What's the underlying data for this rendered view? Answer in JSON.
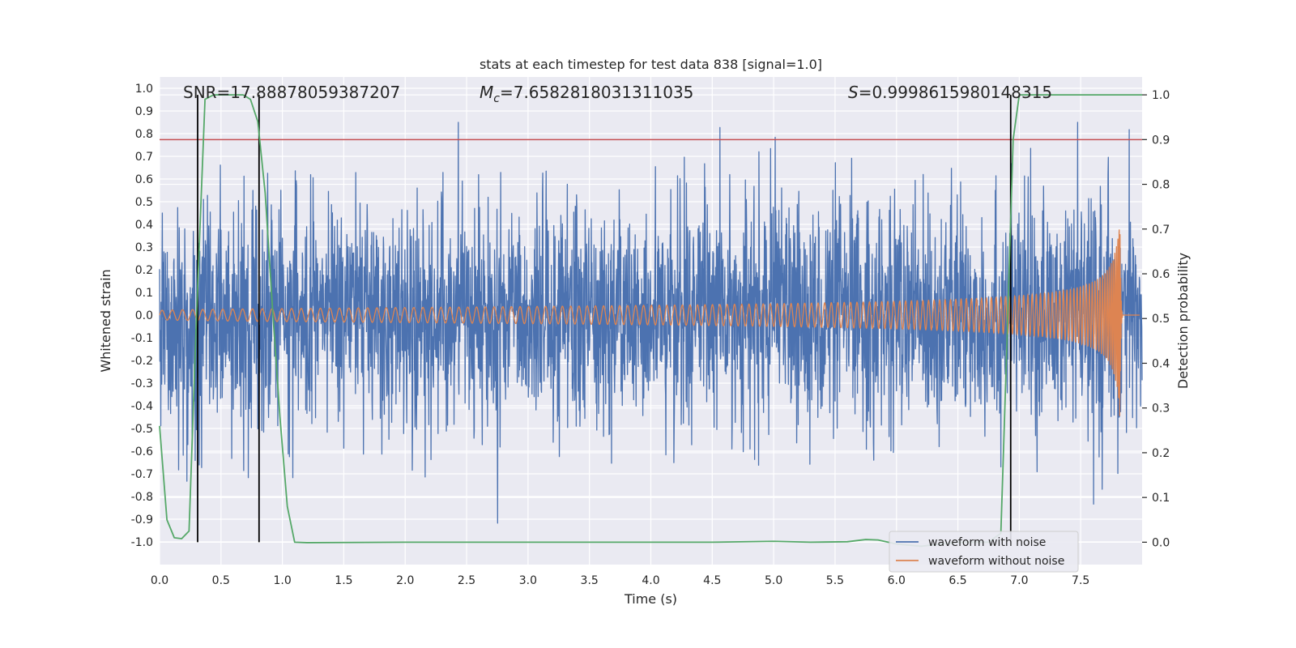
{
  "chart_data": {
    "type": "line",
    "title": "stats at each timestep for test data 838 [signal=1.0]",
    "xlabel": "Time (s)",
    "ylabel": "Whitened strain",
    "y2label": "Detection probability",
    "xlim": [
      0.0,
      8.0
    ],
    "ylim": [
      -1.1,
      1.05
    ],
    "y2lim": [
      -0.05,
      1.04
    ],
    "xticks": [
      "0.0",
      "0.5",
      "1.0",
      "1.5",
      "2.0",
      "2.5",
      "3.0",
      "3.5",
      "4.0",
      "4.5",
      "5.0",
      "5.5",
      "6.0",
      "6.5",
      "7.0",
      "7.5"
    ],
    "yticks": [
      "1.0",
      "0.9",
      "0.8",
      "0.7",
      "0.6",
      "0.5",
      "0.4",
      "0.3",
      "0.2",
      "0.1",
      "0.0",
      "-0.1",
      "-0.2",
      "-0.3",
      "-0.4",
      "-0.5",
      "-0.6",
      "-0.7",
      "-0.8",
      "-0.9",
      "-1.0"
    ],
    "y2ticks": [
      "1.0",
      "0.9",
      "0.8",
      "0.7",
      "0.6",
      "0.5",
      "0.4",
      "0.3",
      "0.2",
      "0.1",
      "0.0"
    ],
    "grid": true,
    "legend_position": "lower-right",
    "annotations": {
      "snr": "SNR=17.88878059387207",
      "mc_symbol": "M",
      "mc_sub": "c",
      "mc_value": "=7.6582818031311035",
      "s_symbol": "S",
      "s_value": "=0.9998615980148315"
    },
    "threshold": {
      "axis": "right",
      "value": 0.9,
      "color": "#c44e52"
    },
    "vertical_markers": [
      0.31,
      0.81,
      6.93
    ],
    "series": [
      {
        "name": "waveform with noise",
        "axis": "left",
        "color": "#4c72b0",
        "description_envelope": {
          "typical_amplitude": 0.45,
          "max_peak": 0.85,
          "min_peak": -0.95
        }
      },
      {
        "name": "waveform without noise",
        "axis": "left",
        "color": "#dd8452",
        "chirp": {
          "start_amplitude": 0.02,
          "peak_amplitude": 0.47,
          "merger_time": 7.82,
          "end_time": 7.84,
          "start_freq": 12,
          "end_freq": 200
        }
      },
      {
        "axis": "right",
        "color": "#55a868",
        "x": [
          0.0,
          0.06,
          0.12,
          0.18,
          0.24,
          0.3,
          0.37,
          0.44,
          0.5,
          0.56,
          0.62,
          0.68,
          0.74,
          0.8,
          0.86,
          0.92,
          0.98,
          1.04,
          1.1,
          1.2,
          2.0,
          3.0,
          4.0,
          4.5,
          5.0,
          5.3,
          5.6,
          5.75,
          5.85,
          6.0,
          6.2,
          6.5,
          6.75,
          6.85,
          6.9,
          6.95,
          7.0,
          7.1,
          7.5,
          8.0
        ],
        "y": [
          0.26,
          0.05,
          0.01,
          0.008,
          0.025,
          0.5,
          0.99,
          1.0,
          1.0,
          1.0,
          1.0,
          1.0,
          0.99,
          0.94,
          0.78,
          0.52,
          0.28,
          0.08,
          0.0,
          -0.001,
          0.0,
          0.0,
          0.0,
          0.0,
          0.002,
          0.0,
          0.001,
          0.006,
          0.005,
          -0.004,
          -0.009,
          0.0,
          0.0,
          0.02,
          0.45,
          0.9,
          1.0,
          1.0,
          1.0,
          1.0
        ]
      }
    ]
  }
}
